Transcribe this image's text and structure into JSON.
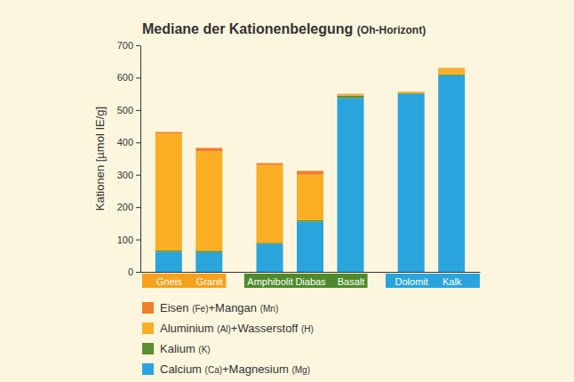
{
  "chart_data": {
    "type": "bar",
    "title": "Mediane der Kationenbelegung (Oh-Horizont)",
    "y_label": "Kationen [µmol IE/g]",
    "categories": [
      "Gneis",
      "Granit",
      "Amphibolit",
      "Diabas",
      "Basalt",
      "Dolomit",
      "Kalk"
    ],
    "series": [
      {
        "name": "Calcium (Ca)+Magnesium (Mg)",
        "color": "#2aa4dc",
        "values": [
          62,
          60,
          86,
          155,
          537,
          550,
          607
        ]
      },
      {
        "name": "Kalium (K)",
        "color": "#5a8f2f",
        "values": [
          4,
          5,
          4,
          5,
          8,
          2,
          3
        ]
      },
      {
        "name": "Aluminium (Al)+Wasserstoff (H)",
        "color": "#f9ae24",
        "values": [
          362,
          308,
          240,
          140,
          3,
          4,
          18
        ]
      },
      {
        "name": "Eisen (Fe)+Mangan (Mn)",
        "color": "#f07f2a",
        "values": [
          4,
          10,
          6,
          12,
          2,
          1,
          2
        ]
      }
    ],
    "ylim": [
      0,
      700
    ],
    "yticks": [
      0,
      100,
      200,
      300,
      400,
      500,
      600,
      700
    ],
    "stacked": true,
    "grid": false,
    "legend": "bottom"
  }
}
